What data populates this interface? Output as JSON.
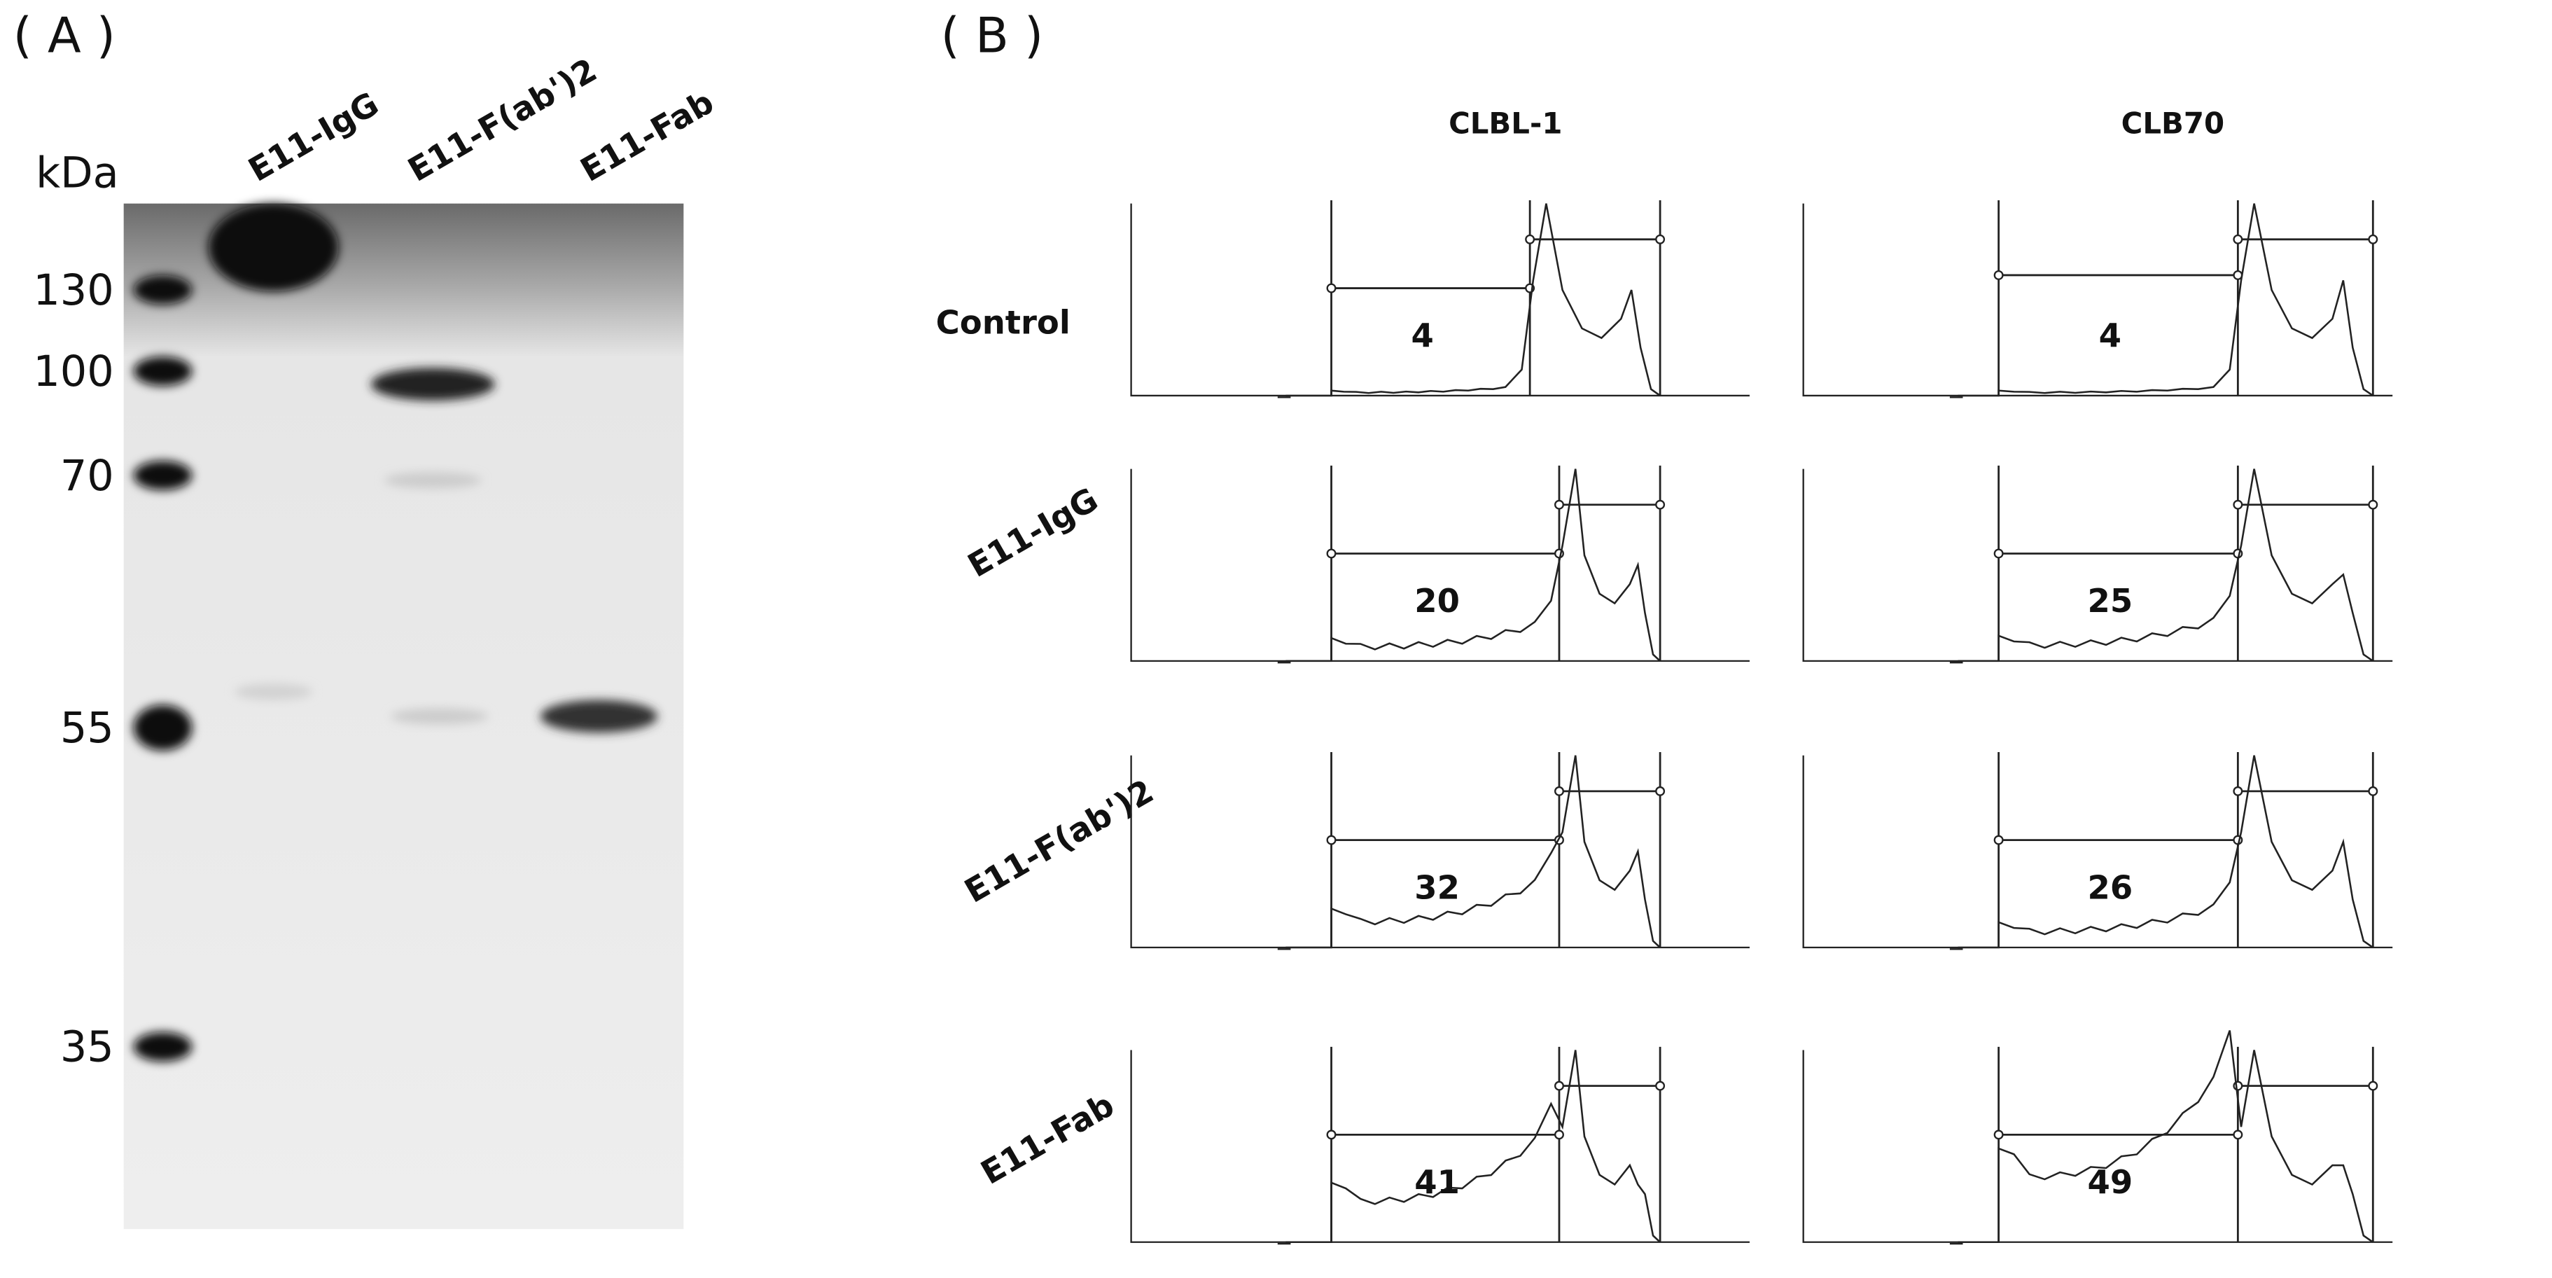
{
  "panel_a": {
    "label": "( A )",
    "unit": "kDa",
    "markers": [
      "130",
      "100",
      "70",
      "55",
      "35"
    ],
    "lanes": [
      "E11-IgG",
      "E11-F(ab')2",
      "E11-Fab"
    ]
  },
  "panel_b": {
    "label": "( B )",
    "columns": [
      "CLBL-1",
      "CLB70"
    ],
    "rows": [
      "Control",
      "E11-IgG",
      "E11-F(ab')2",
      "E11-Fab"
    ],
    "values": [
      [
        "4",
        "4"
      ],
      [
        "20",
        "25"
      ],
      [
        "32",
        "26"
      ],
      [
        "41",
        "49"
      ]
    ]
  }
}
